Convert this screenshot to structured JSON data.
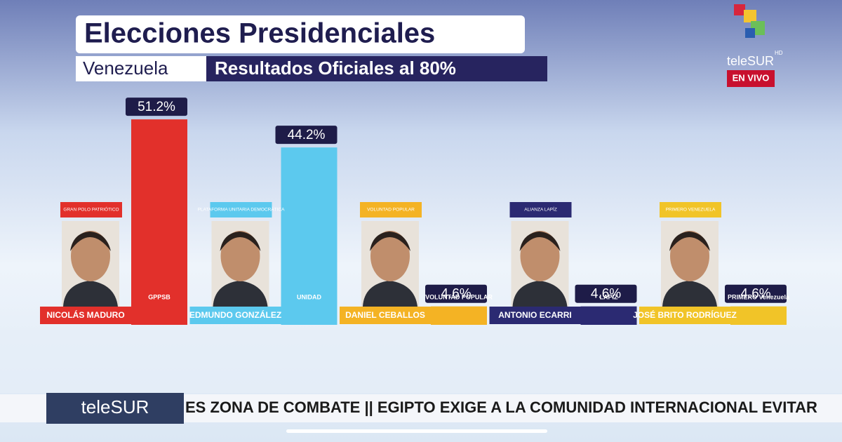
{
  "chart_data": {
    "type": "bar",
    "title": "Elecciones Presidenciales",
    "subtitle_left": "Venezuela",
    "subtitle_right": "Resultados Oficiales al 80%",
    "categories": [
      "NICOLÁS MADURO",
      "EDMUNDO GONZÁLEZ",
      "DANIEL CEBALLOS",
      "ANTONIO ECARRI",
      "JOSÉ BRITO RODRÍGUEZ"
    ],
    "parties": [
      "GRAN POLO PATRIÓTICO",
      "PLATAFORMA UNITARIA DEMOCRÁTICA",
      "VOLUNTAD POPULAR",
      "ALIANZA LAPÍZ",
      "PRIMERO VENEZUELA"
    ],
    "logos": [
      "GPPSB",
      "UNIDAD",
      "VOLUNTAD POPULAR",
      "LAPIZ",
      "PRIMERO Venezuela"
    ],
    "values": [
      51.2,
      44.2,
      4.6,
      4.6,
      4.6
    ],
    "value_labels": [
      "51.2%",
      "44.2%",
      "4.6%",
      "4.6%",
      "4.6%"
    ],
    "colors": [
      "#e2302b",
      "#5cc9ee",
      "#f4b324",
      "#2b2a72",
      "#f1c428"
    ]
  },
  "channel": {
    "logo": "teleSUR",
    "hd": "HD",
    "live": "EN VIVO"
  },
  "ticker": {
    "brand": "teleSUR",
    "text": "ES ZONA DE COMBATE  ||  EGIPTO EXIGE A LA COMUNIDAD INTERNACIONAL EVITAR"
  }
}
